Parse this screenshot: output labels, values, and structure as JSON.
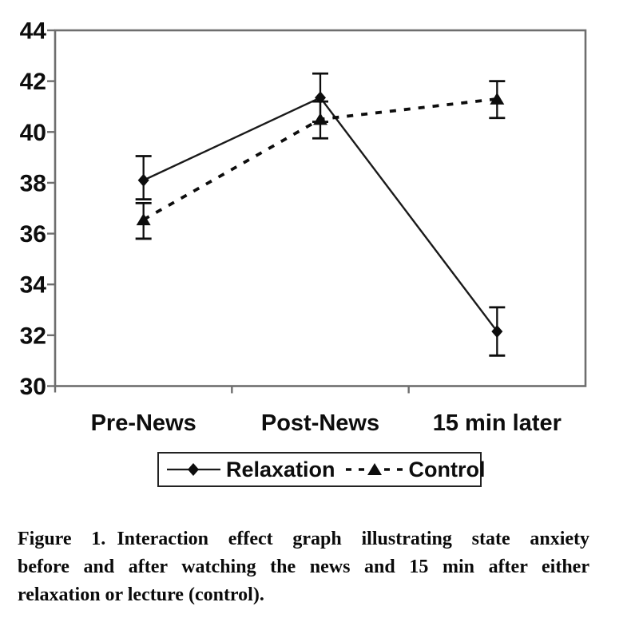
{
  "chart_data": {
    "type": "line",
    "title": "",
    "xlabel": "",
    "ylabel": "",
    "categories": [
      "Pre-News",
      "Post-News",
      "15 min later"
    ],
    "y_axis": {
      "min": 30,
      "max": 44,
      "step": 2
    },
    "ylim": [
      30,
      44
    ],
    "grid": false,
    "legend_position": "bottom",
    "error_bars": true,
    "series": [
      {
        "name": "Relaxation",
        "marker": "diamond",
        "line_style": "solid",
        "values": [
          38.1,
          41.35,
          32.15
        ],
        "error_low": [
          37.35,
          40.4,
          31.2
        ],
        "error_high": [
          39.05,
          42.3,
          33.1
        ]
      },
      {
        "name": "Control",
        "marker": "triangle",
        "line_style": "dashed",
        "values": [
          36.55,
          40.5,
          41.3
        ],
        "error_low": [
          35.8,
          39.75,
          40.55
        ],
        "error_high": [
          37.2,
          41.2,
          42.0
        ]
      }
    ],
    "colors": {
      "axis": "#6e6e6e",
      "series": "#0d0d0d"
    }
  },
  "caption": {
    "figure_label": "Figure 1.",
    "line1_rest": "Interaction effect graph illustrating state anxiety",
    "line2": "before and after watching the news and 15 min after either",
    "line3": "relaxation or lecture (control)."
  }
}
